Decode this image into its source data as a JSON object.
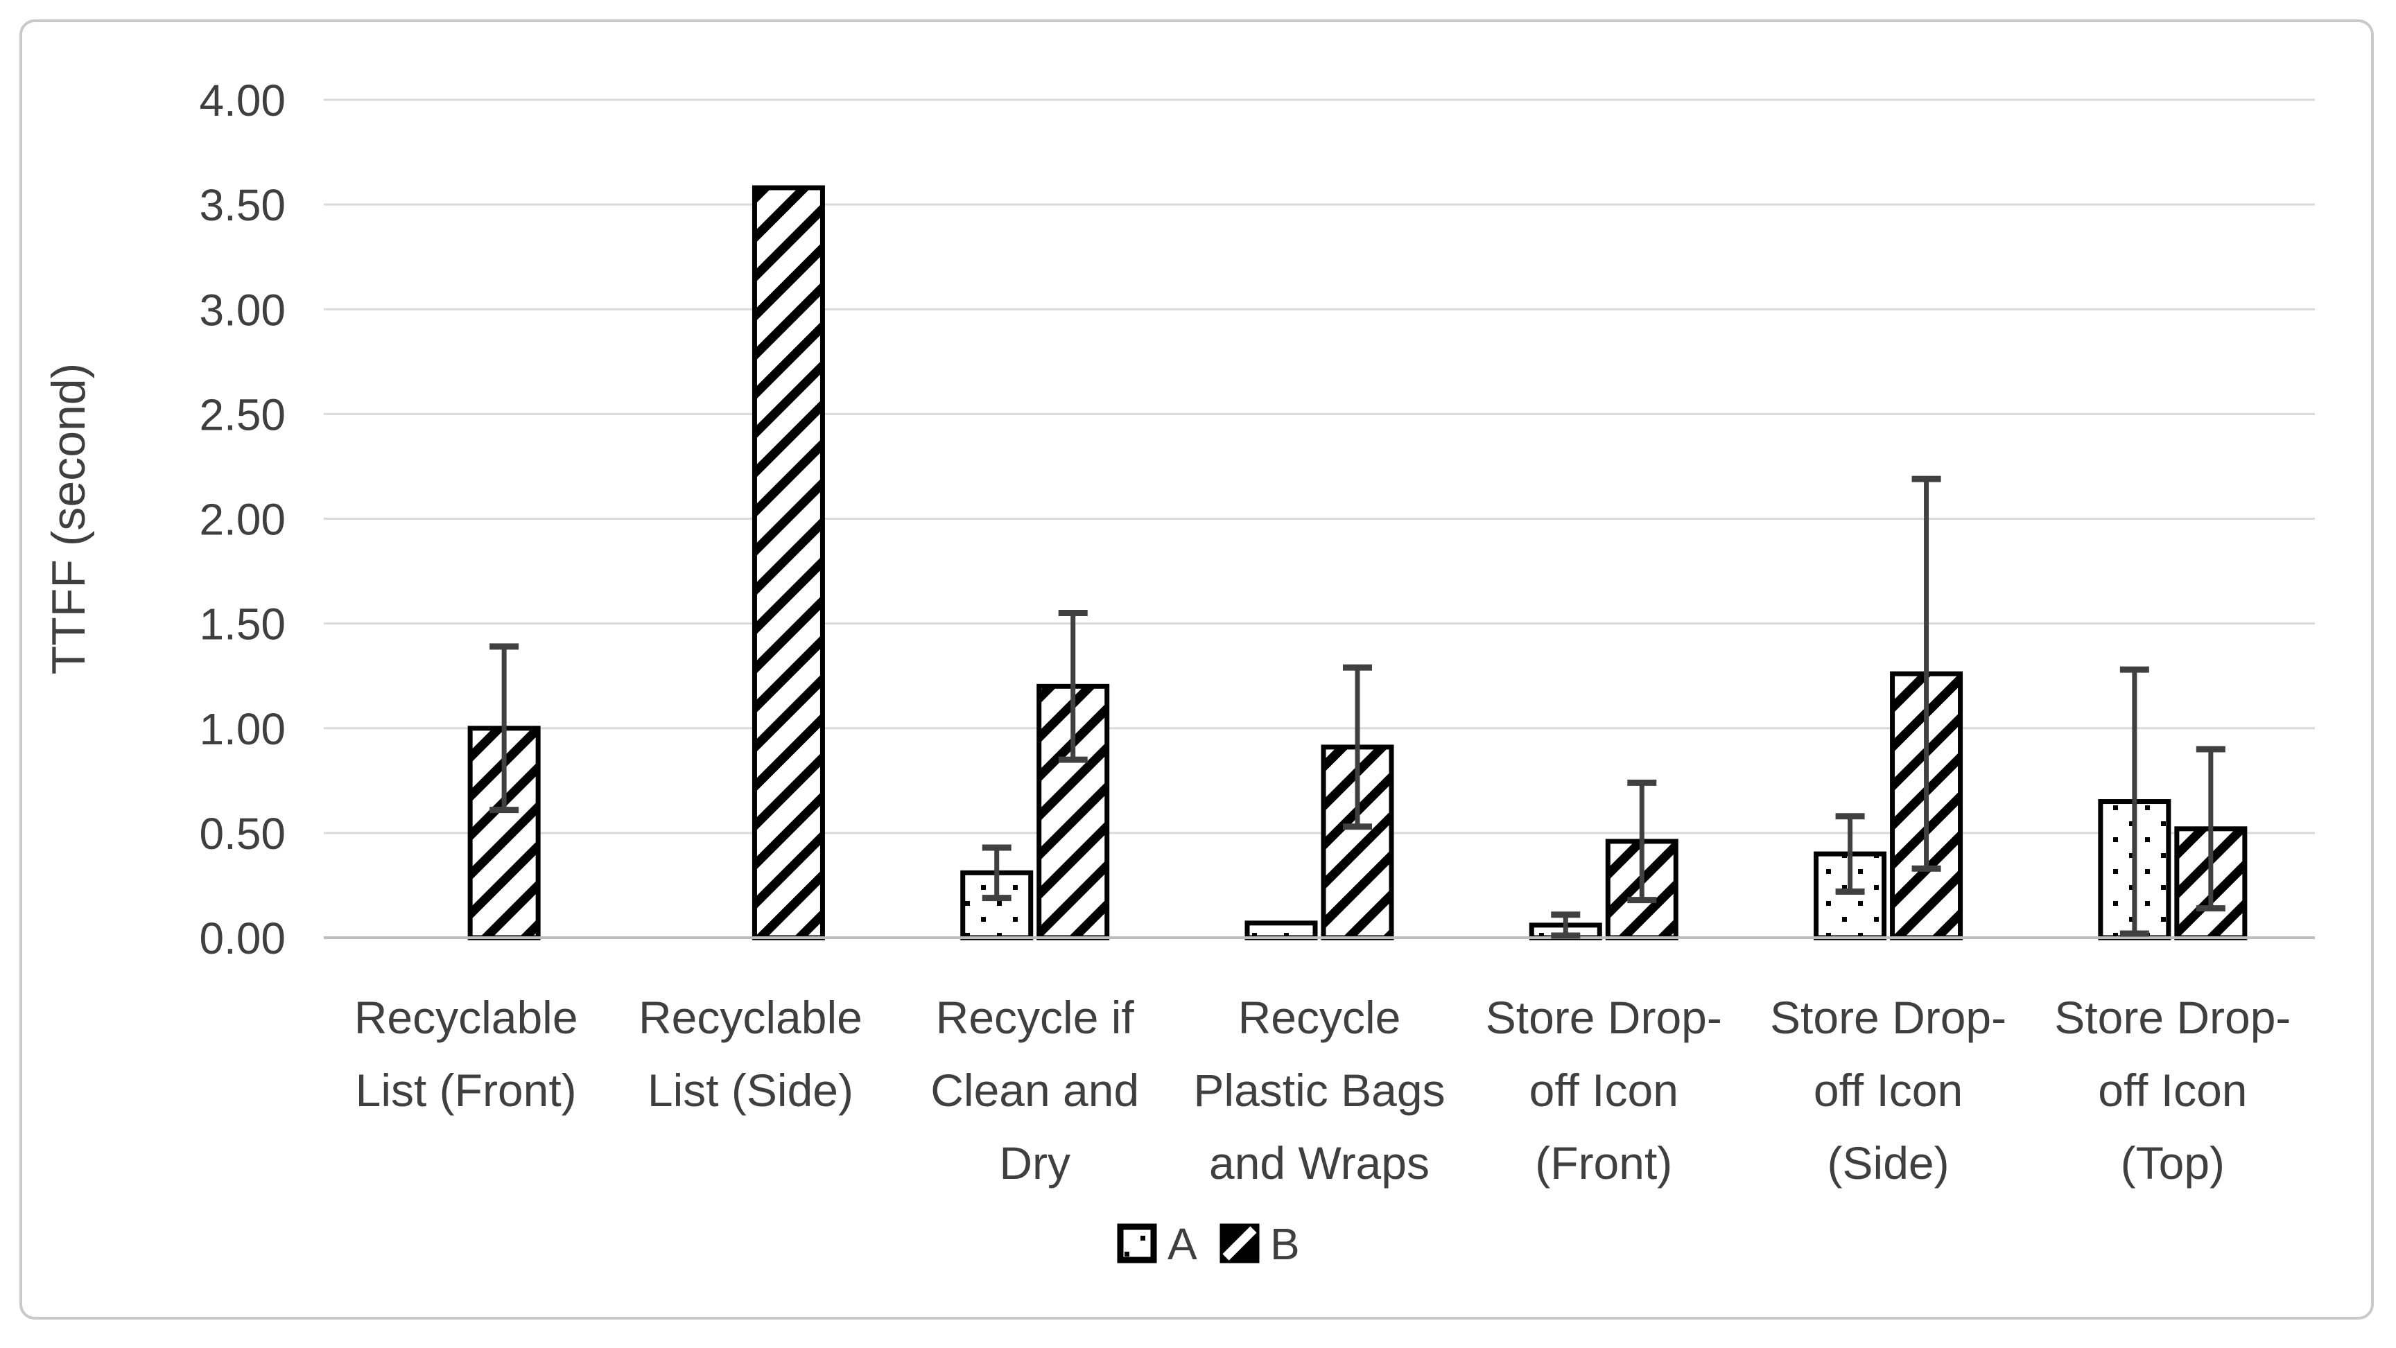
{
  "chart_data": {
    "type": "bar",
    "title": "",
    "xlabel": "",
    "ylabel": "TTFF (second)",
    "ylim": [
      0,
      4
    ],
    "ytick_step": 0.5,
    "ytick_decimals": 2,
    "ytick_labels": [
      "0.00",
      "0.50",
      "1.00",
      "1.50",
      "2.00",
      "2.50",
      "3.00",
      "3.50",
      "4.00"
    ],
    "grid": "horizontal",
    "legend_position": "bottom-center",
    "categories": [
      {
        "label": "Recyclable List (Front)",
        "lines": [
          "Recyclable",
          "List (Front)"
        ]
      },
      {
        "label": "Recyclable List (Side)",
        "lines": [
          "Recyclable",
          "List (Side)"
        ]
      },
      {
        "label": "Recycle if Clean and Dry",
        "lines": [
          "Recycle if",
          "Clean and",
          "Dry"
        ]
      },
      {
        "label": "Recycle Plastic Bags and Wraps",
        "lines": [
          "Recycle",
          "Plastic Bags",
          "and Wraps"
        ]
      },
      {
        "label": "Store Drop-off Icon (Front)",
        "lines": [
          "Store Drop-",
          "off Icon",
          "(Front)"
        ]
      },
      {
        "label": "Store Drop-off Icon (Side)",
        "lines": [
          "Store Drop-",
          "off Icon",
          "(Side)"
        ]
      },
      {
        "label": "Store Drop-off Icon (Top)",
        "lines": [
          "Store Drop-",
          "off Icon",
          "(Top)"
        ]
      }
    ],
    "series": [
      {
        "name": "A",
        "pattern": "dots",
        "values": [
          null,
          null,
          0.31,
          0.07,
          0.06,
          0.4,
          0.65
        ],
        "error": [
          null,
          null,
          0.12,
          null,
          0.05,
          0.18,
          0.63
        ]
      },
      {
        "name": "B",
        "pattern": "diagonal-hatch",
        "values": [
          1.0,
          3.58,
          1.2,
          0.91,
          0.46,
          1.26,
          0.52
        ],
        "error": [
          0.39,
          null,
          0.35,
          0.38,
          0.28,
          0.93,
          0.38
        ]
      }
    ],
    "colors": {
      "bar_fill": "#ffffff",
      "bar_stroke": "#000000",
      "pattern_ink": "#000000",
      "error_bar": "#404040",
      "gridline": "#d9d9d9",
      "axis_line": "#bdbdbd",
      "text": "#3f3f3f",
      "frame_border": "#c9c9c9"
    }
  }
}
